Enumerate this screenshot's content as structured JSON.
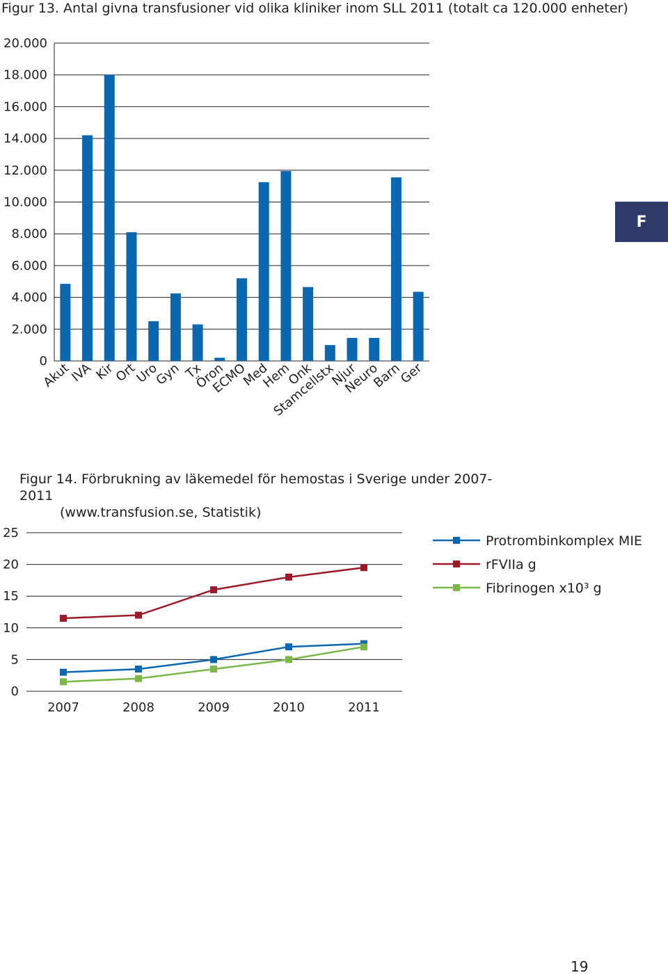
{
  "fig13": {
    "caption": "Figur 13. Antal givna transfusioner vid olika kliniker inom SLL 2011 (totalt ca 120.000 enheter)"
  },
  "fig14": {
    "caption_line1": "Figur 14. Förbrukning av läkemedel för hemostas i Sverige under 2007-2011",
    "caption_line2": "(www.transfusion.se, Statistik)"
  },
  "section_tab": "F",
  "page_number": "19",
  "colors": {
    "bar": "#0a67b0",
    "grid": "#231f20",
    "tab": "#2e3a68",
    "series": [
      "#0a67b0",
      "#9b1b2a",
      "#7ab648"
    ]
  },
  "chart_data": [
    {
      "type": "bar",
      "title": "",
      "xlabel": "",
      "ylabel": "",
      "categories": [
        "Akut",
        "IVA",
        "Kir",
        "Ort",
        "Uro",
        "Gyn",
        "Tx",
        "Öron",
        "ECMO",
        "Med",
        "Hem",
        "Onk",
        "Stamcellstx",
        "Njur",
        "Neuro",
        "Barn",
        "Ger"
      ],
      "values": [
        4850,
        14200,
        18000,
        8100,
        2500,
        4250,
        2300,
        200,
        5200,
        11250,
        11950,
        4650,
        1000,
        1450,
        1450,
        11550,
        4350
      ],
      "ylim": [
        0,
        20000
      ],
      "yticks": [
        0,
        2000,
        4000,
        6000,
        8000,
        10000,
        12000,
        14000,
        16000,
        18000,
        20000
      ],
      "ytick_labels": [
        "0",
        "2.000",
        "4.000",
        "6.000",
        "8.000",
        "10.000",
        "12.000",
        "14.000",
        "16.000",
        "18.000",
        "20.000"
      ],
      "grid": true
    },
    {
      "type": "line",
      "title": "",
      "xlabel": "",
      "ylabel": "",
      "x": [
        "2007",
        "2008",
        "2009",
        "2010",
        "2011"
      ],
      "series": [
        {
          "name": "Protrombinkomplex MIE",
          "values": [
            3,
            3.5,
            5,
            7,
            7.5
          ]
        },
        {
          "name": "rFVIIa g",
          "values": [
            11.5,
            12,
            16,
            18,
            19.5
          ]
        },
        {
          "name": "Fibrinogen x10³ g",
          "values": [
            1.5,
            2,
            3.5,
            5,
            7
          ]
        }
      ],
      "ylim": [
        0,
        25
      ],
      "yticks": [
        0,
        5,
        10,
        15,
        20,
        25
      ],
      "ytick_labels": [
        "0",
        "5",
        "10",
        "15",
        "20",
        "25"
      ],
      "legend": "top-right",
      "grid": true
    }
  ]
}
